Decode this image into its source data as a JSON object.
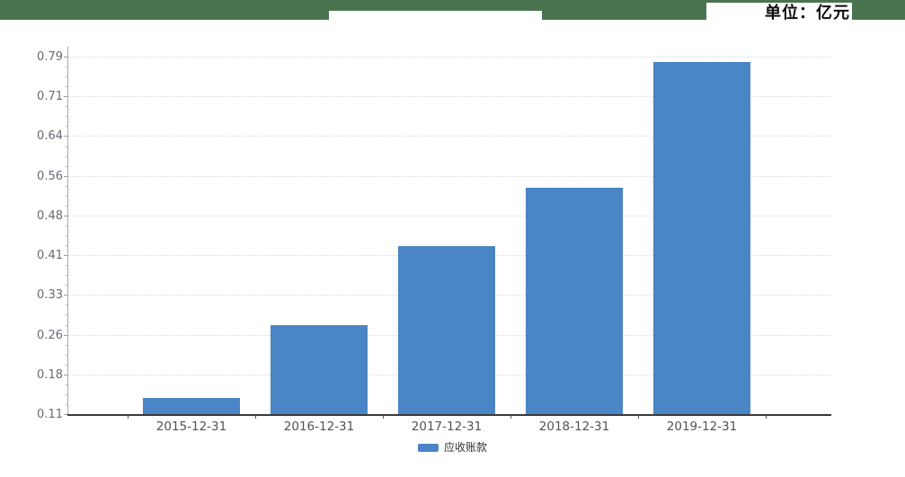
{
  "header": {
    "unit_label": "单位：亿元",
    "bar_color": "#4a7350"
  },
  "chart_data": {
    "type": "bar",
    "title": "",
    "categories": [
      "2015-12-31",
      "2016-12-31",
      "2017-12-31",
      "2018-12-31",
      "2019-12-31"
    ],
    "series": [
      {
        "name": "应收账款",
        "values": [
          0.14,
          0.28,
          0.43,
          0.54,
          0.78
        ]
      }
    ],
    "unit": "亿元",
    "ylim": [
      0.11,
      0.79
    ],
    "ytick_labels": [
      "0.11",
      "0.18",
      "0.26",
      "0.33",
      "0.41",
      "0.48",
      "0.56",
      "0.64",
      "0.71",
      "0.79"
    ],
    "grid": "horizontal dotted, light gray",
    "legend": {
      "label": "应收账款",
      "swatch_color": "#4a85c5",
      "position": "bottom-center"
    },
    "bar_color": "#4a85c5"
  }
}
